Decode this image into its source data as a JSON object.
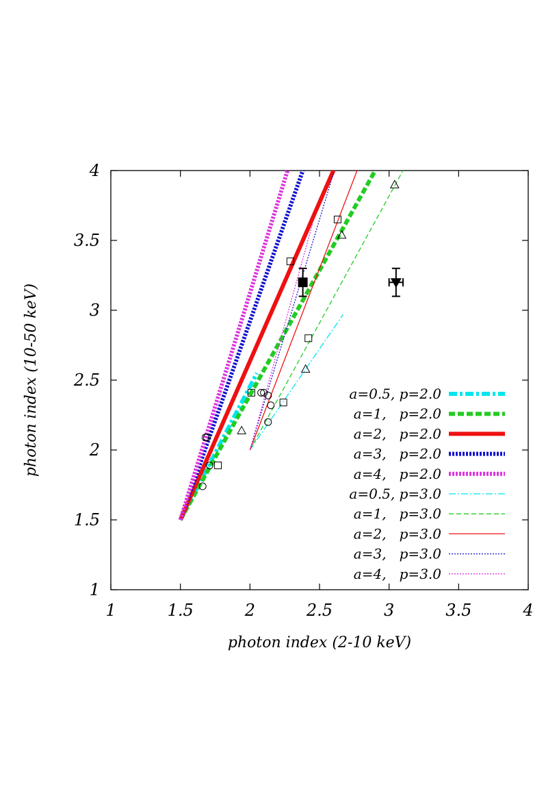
{
  "chart_data": {
    "type": "line",
    "xlabel": "photon index (2-10 keV)",
    "ylabel": "photon index (10-50 keV)",
    "xlim": [
      1,
      4
    ],
    "ylim": [
      1,
      4
    ],
    "xticks": [
      "1",
      "1.5",
      "2",
      "2.5",
      "3",
      "3.5",
      "4"
    ],
    "yticks": [
      "1",
      "1.5",
      "2",
      "2.5",
      "3",
      "3.5",
      "4"
    ],
    "grid": false,
    "legend_position": "bottom-right",
    "series": [
      {
        "name": "a=0.5, p=2.0",
        "color": "#00e5ee",
        "style": "dash-dot",
        "weight": "thick",
        "x": [
          1.5,
          2.05
        ],
        "y": [
          1.5,
          2.55
        ]
      },
      {
        "name": "a=1,   p=2.0",
        "color": "#22cc22",
        "style": "dashed",
        "weight": "thick",
        "x": [
          1.5,
          2.9
        ],
        "y": [
          1.5,
          4.0
        ]
      },
      {
        "name": "a=2,   p=2.0",
        "color": "#ee1111",
        "style": "solid",
        "weight": "thick",
        "x": [
          1.5,
          2.6
        ],
        "y": [
          1.5,
          4.0
        ]
      },
      {
        "name": "a=3,   p=2.0",
        "color": "#1111cc",
        "style": "dotted",
        "weight": "thick",
        "x": [
          1.5,
          2.38
        ],
        "y": [
          1.5,
          4.0
        ]
      },
      {
        "name": "a=4,   p=2.0",
        "color": "#dd33dd",
        "style": "dotted",
        "weight": "thick",
        "x": [
          1.5,
          2.27
        ],
        "y": [
          1.5,
          4.0
        ]
      },
      {
        "name": "a=0.5, p=3.0",
        "color": "#00e5ee",
        "style": "dash-dot",
        "weight": "thin",
        "x": [
          2.0,
          2.67
        ],
        "y": [
          2.0,
          2.97
        ]
      },
      {
        "name": "a=1,   p=3.0",
        "color": "#22cc22",
        "style": "dashed",
        "weight": "thin",
        "x": [
          2.0,
          3.1
        ],
        "y": [
          2.0,
          4.0
        ]
      },
      {
        "name": "a=2,   p=3.0",
        "color": "#ee1111",
        "style": "solid",
        "weight": "thin",
        "x": [
          2.0,
          2.77
        ],
        "y": [
          2.0,
          4.0
        ]
      },
      {
        "name": "a=3,   p=3.0",
        "color": "#1111cc",
        "style": "dotted",
        "weight": "thin",
        "x": [
          2.0,
          2.6
        ],
        "y": [
          2.0,
          3.98
        ]
      },
      {
        "name": "a=4,   p=3.0",
        "color": "#dd33dd",
        "style": "dotted",
        "weight": "thin",
        "x": [
          2.0,
          2.45
        ],
        "y": [
          2.0,
          3.62
        ]
      }
    ],
    "markers": [
      {
        "shape": "circle",
        "x": 1.68,
        "y": 2.09
      },
      {
        "shape": "circle",
        "x": 1.69,
        "y": 2.09
      },
      {
        "shape": "circle",
        "x": 1.71,
        "y": 1.89
      },
      {
        "shape": "circle",
        "x": 1.66,
        "y": 1.74
      },
      {
        "shape": "circle",
        "x": 2.08,
        "y": 2.41
      },
      {
        "shape": "circle",
        "x": 2.1,
        "y": 2.41
      },
      {
        "shape": "circle",
        "x": 2.13,
        "y": 2.39
      },
      {
        "shape": "circle",
        "x": 2.15,
        "y": 2.32
      },
      {
        "shape": "circle",
        "x": 2.13,
        "y": 2.2
      },
      {
        "shape": "square",
        "x": 1.77,
        "y": 1.89
      },
      {
        "shape": "square",
        "x": 2.01,
        "y": 2.41
      },
      {
        "shape": "square",
        "x": 2.24,
        "y": 2.34
      },
      {
        "shape": "square",
        "x": 2.29,
        "y": 3.35
      },
      {
        "shape": "square",
        "x": 2.42,
        "y": 2.8
      },
      {
        "shape": "square",
        "x": 2.63,
        "y": 3.65
      },
      {
        "shape": "triangle",
        "x": 1.94,
        "y": 2.14
      },
      {
        "shape": "triangle",
        "x": 2.4,
        "y": 2.58
      },
      {
        "shape": "triangle",
        "x": 2.66,
        "y": 3.54
      },
      {
        "shape": "triangle",
        "x": 3.04,
        "y": 3.9
      }
    ],
    "observed_points": [
      {
        "shape": "filled-square",
        "x": 2.38,
        "y": 3.2,
        "xerr": 0.02,
        "yerr": 0.1
      },
      {
        "shape": "filled-down-triangle",
        "x": 3.05,
        "y": 3.2,
        "xerr": 0.05,
        "yerr": 0.1
      }
    ]
  }
}
